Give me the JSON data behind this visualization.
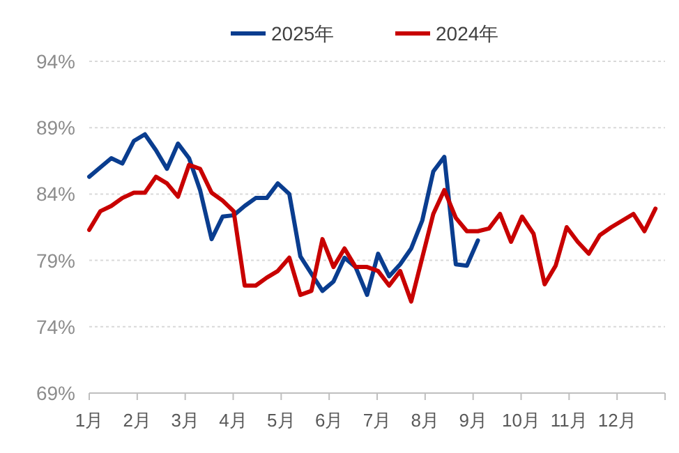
{
  "chart_data": {
    "type": "line",
    "legend": "top",
    "grid": "y",
    "marker": "none",
    "line_style": "solid",
    "xlim": [
      1,
      13
    ],
    "xticks": [
      {
        "value": 1,
        "label": "1月"
      },
      {
        "value": 2,
        "label": "2月"
      },
      {
        "value": 3,
        "label": "3月"
      },
      {
        "value": 4,
        "label": "4月"
      },
      {
        "value": 5,
        "label": "5月"
      },
      {
        "value": 6,
        "label": "6月"
      },
      {
        "value": 7,
        "label": "7月"
      },
      {
        "value": 8,
        "label": "8月"
      },
      {
        "value": 9,
        "label": "9月"
      },
      {
        "value": 10,
        "label": "10月"
      },
      {
        "value": 11,
        "label": "11月"
      },
      {
        "value": 12,
        "label": "12月"
      },
      {
        "value": 13,
        "label": null
      }
    ],
    "ylim": [
      69,
      94
    ],
    "yticks": [
      {
        "value": 69,
        "label": "69%"
      },
      {
        "value": 74,
        "label": "74%"
      },
      {
        "value": 79,
        "label": "79%"
      },
      {
        "value": 84,
        "label": "84%"
      },
      {
        "value": 89,
        "label": "89%"
      },
      {
        "value": 94,
        "label": "94%"
      }
    ],
    "series": [
      {
        "name": "2025年",
        "color": "#0a3d8f",
        "x": [
          1.0,
          1.23,
          1.46,
          1.69,
          1.93,
          2.16,
          2.39,
          2.62,
          2.85,
          3.08,
          3.31,
          3.55,
          3.78,
          4.01,
          4.24,
          4.47,
          4.7,
          4.93,
          5.17,
          5.4,
          5.63,
          5.86,
          6.09,
          6.32,
          6.55,
          6.79,
          7.02,
          7.25,
          7.48,
          7.71,
          7.94,
          8.17,
          8.4,
          8.64,
          8.87,
          9.1
        ],
        "values": [
          85.3,
          86.0,
          86.7,
          86.3,
          88.0,
          88.5,
          87.3,
          85.9,
          87.8,
          86.7,
          84.3,
          80.6,
          82.3,
          82.4,
          83.1,
          83.7,
          83.7,
          84.8,
          84.0,
          79.3,
          78.0,
          76.7,
          77.4,
          79.2,
          78.5,
          76.4,
          79.5,
          77.8,
          78.7,
          79.9,
          82.0,
          85.7,
          86.8,
          78.7,
          78.6,
          80.5
        ]
      },
      {
        "name": "2024年",
        "color": "#c80000",
        "x": [
          1.0,
          1.23,
          1.46,
          1.69,
          1.93,
          2.16,
          2.39,
          2.62,
          2.85,
          3.08,
          3.31,
          3.55,
          3.78,
          4.01,
          4.24,
          4.47,
          4.7,
          4.93,
          5.17,
          5.4,
          5.63,
          5.86,
          6.09,
          6.32,
          6.55,
          6.79,
          7.02,
          7.25,
          7.48,
          7.71,
          7.94,
          8.17,
          8.4,
          8.64,
          8.87,
          9.1,
          9.33,
          9.56,
          9.79,
          10.02,
          10.26,
          10.49,
          10.72,
          10.95,
          11.18,
          11.41,
          11.64,
          11.88,
          12.11,
          12.34,
          12.57,
          12.8
        ],
        "values": [
          81.3,
          82.7,
          83.1,
          83.7,
          84.1,
          84.1,
          85.3,
          84.8,
          83.8,
          86.2,
          85.9,
          84.1,
          83.5,
          82.7,
          77.1,
          77.1,
          77.7,
          78.2,
          79.2,
          76.4,
          76.7,
          80.6,
          78.5,
          79.9,
          78.5,
          78.5,
          78.2,
          77.1,
          78.2,
          75.9,
          79.2,
          82.5,
          84.3,
          82.2,
          81.2,
          81.2,
          81.4,
          82.5,
          80.4,
          82.3,
          81.0,
          77.2,
          78.6,
          81.5,
          80.4,
          79.5,
          80.9,
          81.5,
          82.0,
          82.5,
          81.2,
          82.9
        ]
      }
    ]
  }
}
